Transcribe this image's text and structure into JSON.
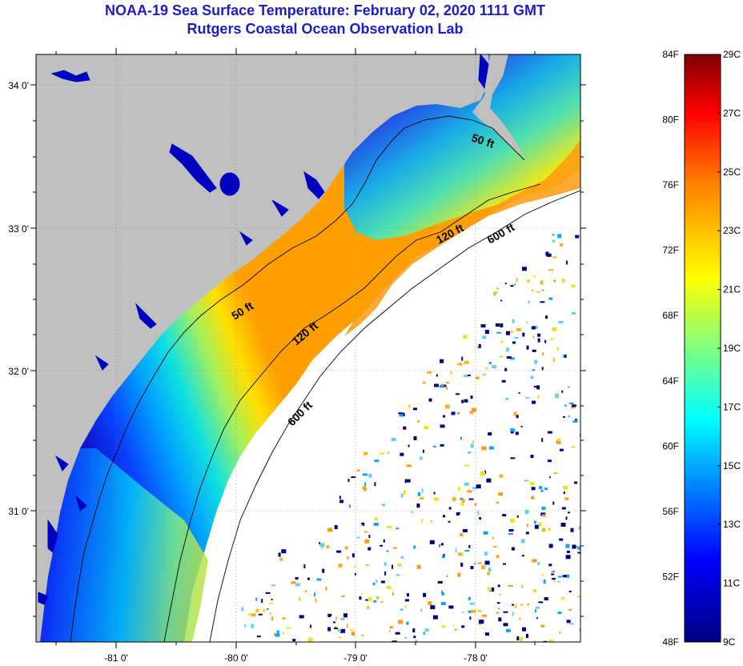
{
  "title": "NOAA-19 Sea Surface Temperature:  February 02, 2020 1111 GMT",
  "subtitle": "Rutgers Coastal Ocean Observation Lab",
  "map": {
    "lat_ticks": [
      "34 0'",
      "33 0'",
      "32 0'",
      "31 0'"
    ],
    "lon_ticks": [
      "-81 0'",
      "-80 0'",
      "-79 0'",
      "-78 0'"
    ],
    "contours": [
      "50 ft",
      "120 ft",
      "600 ft"
    ],
    "contour_labels": [
      {
        "text": "50 ft",
        "isobath": "50 ft"
      },
      {
        "text": "50 ft",
        "isobath": "50 ft"
      },
      {
        "text": "120 ft",
        "isobath": "120 ft"
      },
      {
        "text": "120 ft",
        "isobath": "120 ft"
      },
      {
        "text": "600 ft",
        "isobath": "600 ft"
      },
      {
        "text": "600 ft",
        "isobath": "600 ft"
      }
    ],
    "land_color": "#c0c0c0",
    "cloud_color": "#ffffff"
  },
  "colorbar": {
    "f_labels": [
      "84F",
      "80F",
      "76F",
      "72F",
      "68F",
      "64F",
      "60F",
      "56F",
      "52F",
      "48F"
    ],
    "c_labels": [
      "29C",
      "27C",
      "25C",
      "23C",
      "21C",
      "19C",
      "17C",
      "15C",
      "13C",
      "11C",
      "9C"
    ],
    "colors": [
      "#000080",
      "#0000ff",
      "#00ffff",
      "#ffff00",
      "#ff8000",
      "#ff0000",
      "#800000"
    ]
  }
}
